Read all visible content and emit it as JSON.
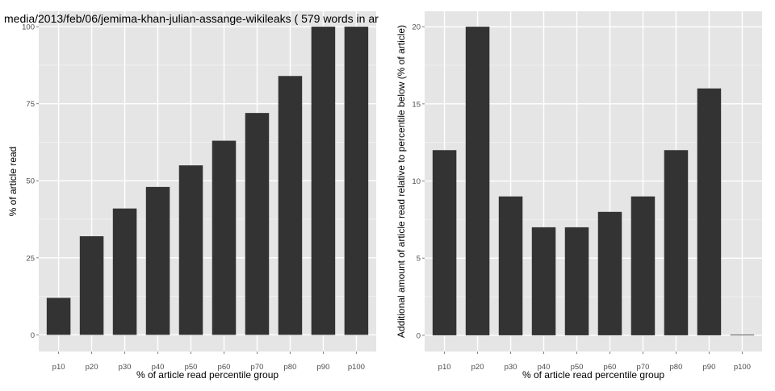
{
  "chart_data": [
    {
      "type": "bar",
      "title": "media/2013/feb/06/jemima-khan-julian-assange-wikileaks ( 579 words in ar",
      "xlabel": "% of article read percentile group",
      "ylabel": "% of article read",
      "categories": [
        "p10",
        "p20",
        "p30",
        "p40",
        "p50",
        "p60",
        "p70",
        "p80",
        "p90",
        "p100"
      ],
      "values": [
        12,
        32,
        41,
        48,
        55,
        63,
        72,
        84,
        100,
        100
      ],
      "ylim": [
        0,
        105
      ],
      "yticks": [
        0,
        25,
        50,
        75,
        100
      ],
      "grid": true,
      "colors": {
        "bar": "#333333",
        "panel": "#e5e5e5",
        "grid": "#ffffff",
        "minor_grid": "#f0f0f0"
      }
    },
    {
      "type": "bar",
      "title": "",
      "xlabel": "% of article read percentile group",
      "ylabel": "Additional amount of article read relative to percentile below (% of article)",
      "categories": [
        "p10",
        "p20",
        "p30",
        "p40",
        "p50",
        "p60",
        "p70",
        "p80",
        "p90",
        "p100"
      ],
      "values": [
        12,
        20,
        9,
        7,
        7,
        8,
        9,
        12,
        16,
        0
      ],
      "ylim": [
        0,
        21
      ],
      "yticks": [
        0,
        5,
        10,
        15,
        20
      ],
      "grid": true,
      "colors": {
        "bar": "#333333",
        "panel": "#e5e5e5",
        "grid": "#ffffff",
        "minor_grid": "#f0f0f0"
      }
    }
  ]
}
